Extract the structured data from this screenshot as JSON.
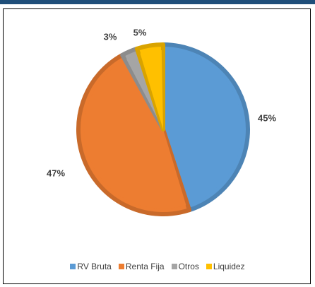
{
  "chart_data": {
    "type": "pie",
    "title": "",
    "categories": [
      "RV Bruta",
      "Renta Fija",
      "Otros",
      "Liquidez"
    ],
    "values": [
      45,
      47,
      3,
      5
    ],
    "labels": [
      "45%",
      "47%",
      "3%",
      "5%"
    ],
    "colors": [
      "#5b9bd5",
      "#ed7d31",
      "#a5a5a5",
      "#ffc000"
    ],
    "legend_position": "bottom"
  }
}
